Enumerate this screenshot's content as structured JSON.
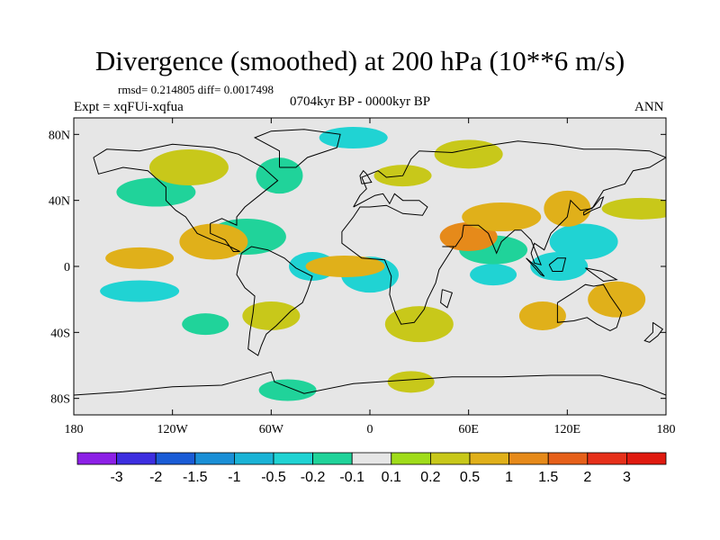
{
  "title": "Divergence (smoothed) at 200 hPa (10**6 m/s)",
  "stats": "rmsd= 0.214805 diff= 0.0017498",
  "expt": "Expt = xqFUi-xqfua",
  "period": "0704kyr BP - 0000kyr BP",
  "season": "ANN",
  "y_ticks": [
    "80N",
    "40N",
    "0",
    "40S",
    "80S"
  ],
  "x_ticks": [
    "180",
    "120W",
    "60W",
    "0",
    "60E",
    "120E",
    "180"
  ],
  "colorbar": {
    "labels": [
      "-3",
      "-2",
      "-1.5",
      "-1",
      "-0.5",
      "-0.2",
      "-0.1",
      "0.1",
      "0.2",
      "0.5",
      "1",
      "1.5",
      "2",
      "3"
    ],
    "colors": [
      "#8c20e6",
      "#3d2ee0",
      "#1a5cd6",
      "#1a8fd6",
      "#1ab3d6",
      "#20d3d3",
      "#20d39a",
      "#e6e6e6",
      "#a0dc1a",
      "#c8c81a",
      "#e0b01a",
      "#e68a1a",
      "#e6601a",
      "#e6301a",
      "#e01a10"
    ]
  },
  "chart_data": {
    "type": "heatmap",
    "title": "Divergence (smoothed) at 200 hPa (10**6 m/s)",
    "subtitle": "0704kyr BP - 0000kyr BP",
    "variable": "Divergence at 200 hPa",
    "units": "10**6 m/s",
    "xlim": [
      -180,
      180
    ],
    "ylim": [
      -90,
      90
    ],
    "contour_levels": [
      -3,
      -2,
      -1.5,
      -1,
      -0.5,
      -0.2,
      -0.1,
      0.1,
      0.2,
      0.5,
      1,
      1.5,
      2,
      3
    ],
    "anomaly_regions": [
      {
        "lon": 75,
        "lat": -5,
        "value": -0.5
      },
      {
        "lon": 115,
        "lat": 0,
        "value": -0.5
      },
      {
        "lon": 130,
        "lat": 15,
        "value": -0.5
      },
      {
        "lon": -140,
        "lat": -15,
        "value": -0.5
      },
      {
        "lon": -35,
        "lat": 0,
        "value": -0.5
      },
      {
        "lon": 0,
        "lat": -5,
        "value": -0.5
      },
      {
        "lon": -10,
        "lat": 78,
        "value": -0.5
      },
      {
        "lon": -130,
        "lat": 45,
        "value": -0.2
      },
      {
        "lon": -55,
        "lat": 55,
        "value": -0.2
      },
      {
        "lon": -50,
        "lat": -75,
        "value": -0.2
      },
      {
        "lon": 75,
        "lat": 10,
        "value": -0.2
      },
      {
        "lon": -75,
        "lat": 18,
        "value": -0.2
      },
      {
        "lon": -100,
        "lat": -35,
        "value": -0.2
      },
      {
        "lon": 60,
        "lat": 18,
        "value": 1.0
      },
      {
        "lon": -95,
        "lat": 15,
        "value": 0.5
      },
      {
        "lon": -15,
        "lat": 0,
        "value": 0.5
      },
      {
        "lon": 105,
        "lat": -30,
        "value": 0.5
      },
      {
        "lon": 150,
        "lat": -20,
        "value": 0.5
      },
      {
        "lon": -140,
        "lat": 5,
        "value": 0.5
      },
      {
        "lon": 80,
        "lat": 30,
        "value": 0.5
      },
      {
        "lon": 120,
        "lat": 35,
        "value": 0.5
      },
      {
        "lon": 20,
        "lat": 55,
        "value": 0.2
      },
      {
        "lon": 60,
        "lat": 68,
        "value": 0.2
      },
      {
        "lon": -110,
        "lat": 60,
        "value": 0.2
      },
      {
        "lon": 25,
        "lat": -70,
        "value": 0.2
      },
      {
        "lon": -60,
        "lat": -30,
        "value": 0.2
      },
      {
        "lon": 30,
        "lat": -35,
        "value": 0.2
      },
      {
        "lon": 165,
        "lat": 35,
        "value": 0.2
      }
    ]
  }
}
